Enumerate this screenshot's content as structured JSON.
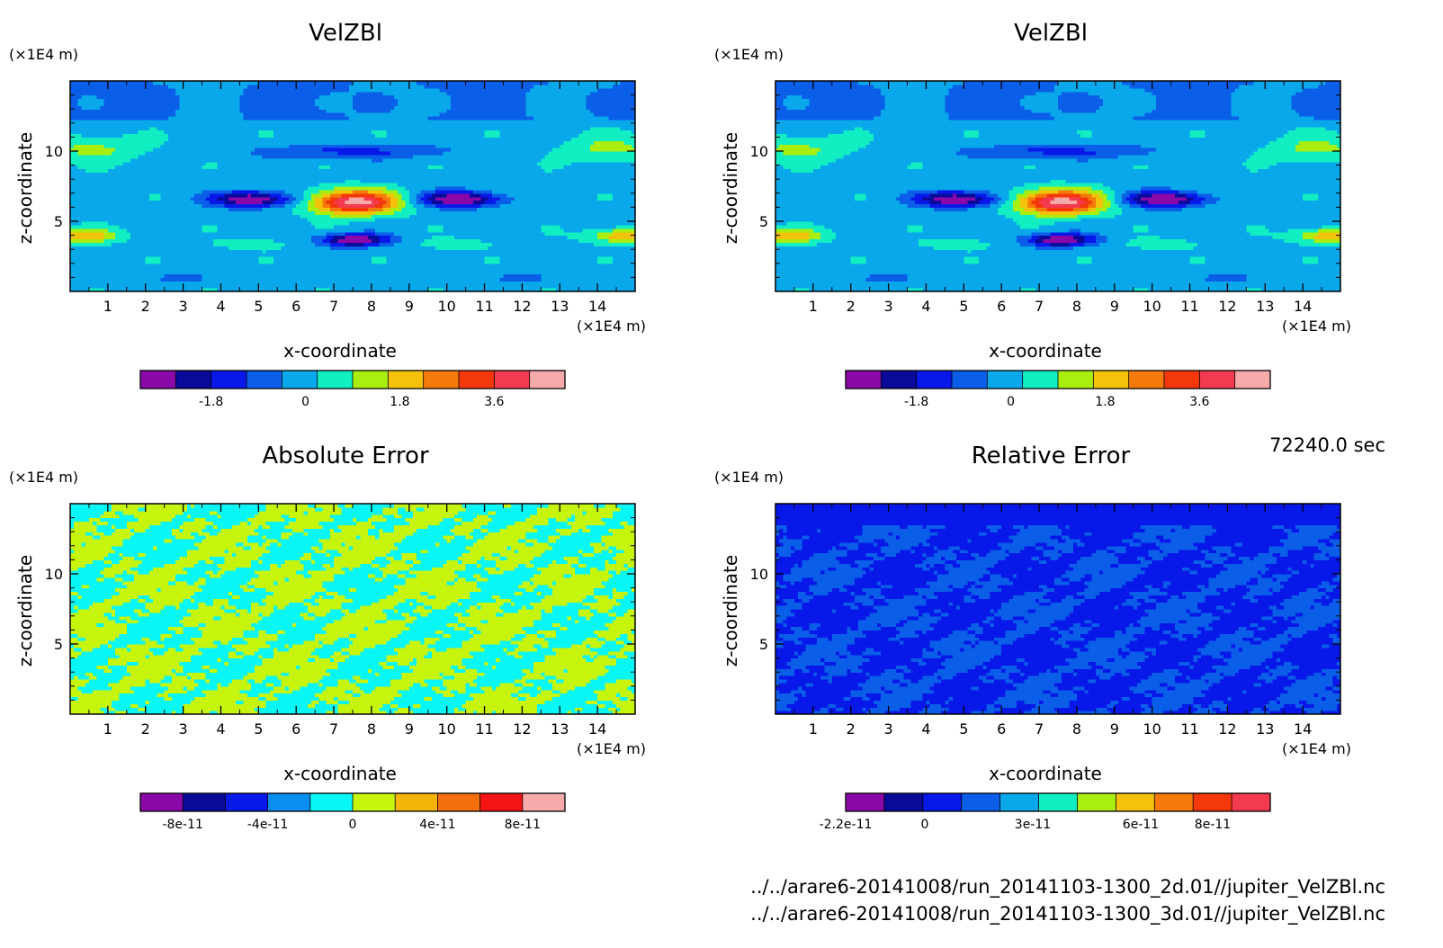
{
  "chart_data": [
    {
      "type": "heatmap",
      "title": "VelZBl",
      "xlabel": "x-coordinate",
      "ylabel": "z-coordinate",
      "x_unit": "(×1E4 m)",
      "y_unit": "(×1E4 m)",
      "xlim": [
        0,
        15
      ],
      "ylim": [
        0,
        15
      ],
      "x_ticks": [
        "1",
        "2",
        "3",
        "4",
        "5",
        "6",
        "7",
        "8",
        "9",
        "10",
        "11",
        "12",
        "13",
        "14"
      ],
      "y_ticks": [
        "5",
        "10"
      ],
      "colorbar": {
        "colors": [
          "#8a08a8",
          "#0a0a9a",
          "#0818e8",
          "#0a5ee8",
          "#08a8ea",
          "#10eec2",
          "#aaee10",
          "#f4c20a",
          "#f47a0a",
          "#f4380c",
          "#f43a4e",
          "#f6aaaa"
        ],
        "ticks": [
          "-1.8",
          "0",
          "1.8",
          "3.6"
        ],
        "tick_values": [
          -1.8,
          0,
          1.8,
          3.6
        ],
        "range": [
          -3.15,
          4.95
        ]
      }
    },
    {
      "type": "heatmap",
      "title": "VelZBl",
      "xlabel": "x-coordinate",
      "ylabel": "z-coordinate",
      "x_unit": "(×1E4 m)",
      "y_unit": "(×1E4 m)",
      "xlim": [
        0,
        15
      ],
      "ylim": [
        0,
        15
      ],
      "x_ticks": [
        "1",
        "2",
        "3",
        "4",
        "5",
        "6",
        "7",
        "8",
        "9",
        "10",
        "11",
        "12",
        "13",
        "14"
      ],
      "y_ticks": [
        "5",
        "10"
      ],
      "colorbar": {
        "colors": [
          "#8a08a8",
          "#0a0a9a",
          "#0818e8",
          "#0a5ee8",
          "#08a8ea",
          "#10eec2",
          "#aaee10",
          "#f4c20a",
          "#f47a0a",
          "#f4380c",
          "#f43a4e",
          "#f6aaaa"
        ],
        "ticks": [
          "-1.8",
          "0",
          "1.8",
          "3.6"
        ],
        "tick_values": [
          -1.8,
          0,
          1.8,
          3.6
        ],
        "range": [
          -3.15,
          4.95
        ]
      }
    },
    {
      "type": "heatmap",
      "title": "Absolute Error",
      "xlabel": "x-coordinate",
      "ylabel": "z-coordinate",
      "x_unit": "(×1E4 m)",
      "y_unit": "(×1E4 m)",
      "xlim": [
        0,
        15
      ],
      "ylim": [
        0,
        15
      ],
      "x_ticks": [
        "1",
        "2",
        "3",
        "4",
        "5",
        "6",
        "7",
        "8",
        "9",
        "10",
        "11",
        "12",
        "13",
        "14"
      ],
      "y_ticks": [
        "5",
        "10"
      ],
      "colorbar": {
        "colors": [
          "#8a08a8",
          "#0a0a9a",
          "#0818e8",
          "#0a8ef0",
          "#08f6f6",
          "#c6f40c",
          "#f4b40a",
          "#f4700c",
          "#f41414",
          "#f6aaaa"
        ],
        "ticks": [
          "-8e-11",
          "-4e-11",
          "0",
          "4e-11",
          "8e-11"
        ],
        "tick_values": [
          -8e-11,
          -4e-11,
          0,
          4e-11,
          8e-11
        ],
        "range": [
          -1e-10,
          1e-10
        ]
      }
    },
    {
      "type": "heatmap",
      "title": "Relative Error",
      "xlabel": "x-coordinate",
      "ylabel": "z-coordinate",
      "x_unit": "(×1E4 m)",
      "y_unit": "(×1E4 m)",
      "xlim": [
        0,
        15
      ],
      "ylim": [
        0,
        15
      ],
      "x_ticks": [
        "1",
        "2",
        "3",
        "4",
        "5",
        "6",
        "7",
        "8",
        "9",
        "10",
        "11",
        "12",
        "13",
        "14"
      ],
      "y_ticks": [
        "5",
        "10"
      ],
      "colorbar": {
        "colors": [
          "#8a08a8",
          "#0a0a9a",
          "#0818e8",
          "#0a5ee8",
          "#08a8ea",
          "#10eec2",
          "#aaee10",
          "#f4c20a",
          "#f47a0a",
          "#f4380c",
          "#f43a4e"
        ],
        "ticks": [
          "-2.2e-11",
          "0",
          "3e-11",
          "6e-11",
          "8e-11"
        ],
        "tick_values": [
          -2.2e-11,
          0,
          3e-11,
          6e-11,
          8e-11
        ],
        "range": [
          -2.2e-11,
          9.6e-11
        ]
      }
    }
  ],
  "time_label": "72240.0 sec",
  "files": [
    "../../arare6-20141008/run_20141103-1300_2d.01//jupiter_VelZBl.nc",
    "../../arare6-20141008/run_20141103-1300_3d.01//jupiter_VelZBl.nc"
  ]
}
